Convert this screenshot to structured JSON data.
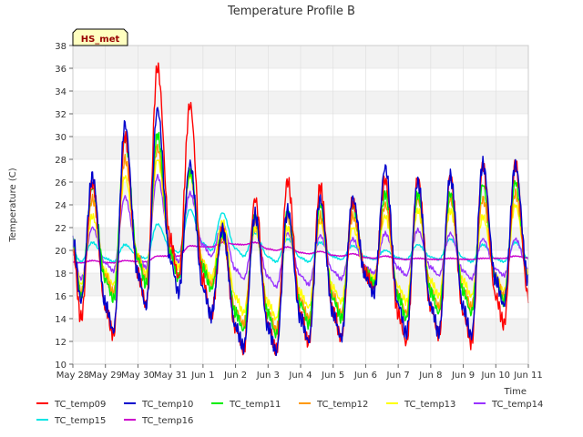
{
  "chart_data": {
    "type": "line",
    "title": "Temperature Profile B",
    "xlabel": "Time",
    "ylabel": "Temperature (C)",
    "ylim": [
      10,
      38
    ],
    "yticks": [
      10,
      12,
      14,
      16,
      18,
      20,
      22,
      24,
      26,
      28,
      30,
      32,
      34,
      36,
      38
    ],
    "xlim": [
      "2023-05-28",
      "2023-06-11"
    ],
    "xticks": [
      "May 28",
      "May 29",
      "May 30",
      "May 31",
      "Jun 1",
      "Jun 2",
      "Jun 3",
      "Jun 4",
      "Jun 5",
      "Jun 6",
      "Jun 7",
      "Jun 8",
      "Jun 9",
      "Jun 10",
      "Jun 11"
    ],
    "grid": true,
    "legend_position": "bottom",
    "annotation": "HS_met",
    "series": [
      {
        "name": "TC_temp09",
        "color": "#ff0000",
        "daily_min": [
          14.0,
          12.6,
          15.3,
          17.6,
          14.2,
          11.3,
          11.2,
          11.9,
          12.3,
          16.6,
          11.9,
          12.6,
          11.9,
          13.5
        ],
        "daily_max": [
          26.0,
          30.1,
          36.1,
          32.8,
          22.0,
          24.5,
          26.1,
          25.6,
          24.3,
          26.2,
          26.4,
          26.5,
          27.4,
          27.5
        ]
      },
      {
        "name": "TC_temp10",
        "color": "#0000cc",
        "daily_min": [
          15.6,
          12.9,
          15.1,
          16.3,
          14.3,
          11.5,
          11.1,
          12.0,
          12.3,
          16.2,
          12.7,
          12.8,
          12.5,
          15.2
        ],
        "daily_max": [
          26.5,
          31.1,
          32.4,
          27.6,
          21.8,
          23.1,
          23.5,
          24.5,
          24.6,
          27.3,
          26.0,
          26.5,
          27.6,
          27.5
        ]
      },
      {
        "name": "TC_temp11",
        "color": "#00ee00",
        "daily_min": [
          16.0,
          15.7,
          17.0,
          17.6,
          16.6,
          13.0,
          12.6,
          13.5,
          14.0,
          17.0,
          14.0,
          14.5,
          14.5,
          15.5
        ],
        "daily_max": [
          25.5,
          29.8,
          30.2,
          27.0,
          21.5,
          23.0,
          23.5,
          24.0,
          24.0,
          25.0,
          25.0,
          25.0,
          25.8,
          26.0
        ]
      },
      {
        "name": "TC_temp12",
        "color": "#ff9900",
        "daily_min": [
          16.2,
          16.3,
          17.5,
          17.8,
          17.0,
          13.5,
          13.0,
          14.0,
          14.5,
          17.0,
          14.5,
          15.0,
          15.0,
          16.0
        ],
        "daily_max": [
          24.5,
          28.0,
          29.0,
          27.0,
          21.0,
          22.5,
          23.0,
          23.0,
          23.0,
          24.0,
          24.5,
          24.5,
          24.5,
          25.0
        ]
      },
      {
        "name": "TC_temp13",
        "color": "#ffff00",
        "daily_min": [
          17.0,
          17.0,
          18.0,
          18.5,
          17.5,
          14.5,
          14.0,
          15.0,
          15.5,
          17.5,
          15.5,
          16.0,
          16.0,
          16.5
        ],
        "daily_max": [
          23.0,
          26.5,
          28.0,
          26.5,
          22.5,
          22.0,
          22.0,
          22.5,
          22.0,
          23.0,
          23.5,
          23.5,
          23.0,
          24.0
        ]
      },
      {
        "name": "TC_temp14",
        "color": "#9933ff",
        "daily_min": [
          17.5,
          18.2,
          18.5,
          19.0,
          19.5,
          17.5,
          16.8,
          17.0,
          17.5,
          18.0,
          17.8,
          17.8,
          17.5,
          17.8
        ],
        "daily_max": [
          22.0,
          24.7,
          26.5,
          25.0,
          22.3,
          21.8,
          21.5,
          21.3,
          21.0,
          21.5,
          21.8,
          21.5,
          21.0,
          21.0
        ]
      },
      {
        "name": "TC_temp15",
        "color": "#00e5e5",
        "daily_min": [
          19.0,
          19.0,
          19.3,
          19.8,
          20.0,
          19.5,
          19.0,
          19.0,
          19.2,
          19.2,
          19.2,
          19.2,
          19.0,
          19.0
        ],
        "daily_max": [
          20.7,
          20.5,
          22.3,
          23.6,
          23.3,
          21.5,
          21.0,
          20.7,
          20.4,
          20.0,
          20.5,
          21.0,
          20.5,
          20.7
        ]
      },
      {
        "name": "TC_temp16",
        "color": "#cc00cc",
        "daily_min": [
          18.9,
          18.9,
          19.0,
          19.5,
          20.3,
          20.5,
          20.0,
          19.7,
          19.5,
          19.3,
          19.2,
          19.2,
          19.2,
          19.3
        ],
        "daily_max": [
          19.1,
          19.1,
          19.5,
          20.4,
          20.7,
          20.7,
          20.3,
          19.9,
          19.7,
          19.5,
          19.3,
          19.3,
          19.3,
          19.5
        ]
      }
    ]
  }
}
